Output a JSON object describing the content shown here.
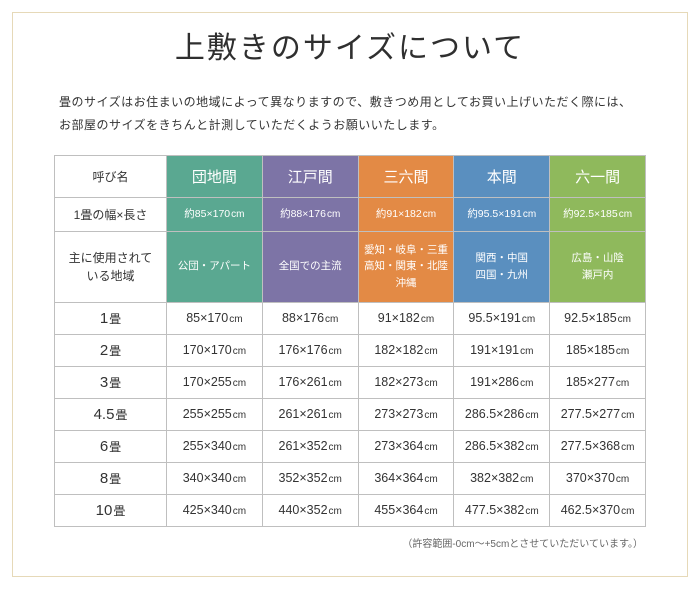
{
  "title": "上敷きのサイズについて",
  "description": "畳のサイズはお住まいの地域によって異なりますので、敷きつめ用としてお買い上げいただく際には、お部屋のサイズをきちんと計測していただくようお願いいたします。",
  "row_headers": {
    "name": "呼び名",
    "one": "1畳の幅×長さ",
    "region": "主に使用されている地域"
  },
  "columns": [
    "団地間",
    "江戸間",
    "三六間",
    "本間",
    "六一間"
  ],
  "colors": {
    "danchi": "#5aa891",
    "edo": "#7d74a6",
    "sanroku": "#e38a45",
    "honma": "#5a8fbf",
    "rokuichi": "#8fb95c"
  },
  "one_tatami": [
    "約85×170",
    "約88×176",
    "約91×182",
    "約95.5×191",
    "約92.5×185"
  ],
  "regions": [
    "公団・アパート",
    "全国での主流",
    "愛知・岐阜・三重<br>高知・関東・北陸<br>沖縄",
    "関西・中国<br>四国・九州",
    "広島・山陰<br>瀬戸内"
  ],
  "sizes": [
    {
      "label": "1",
      "vals": [
        "85×170",
        "88×176",
        "91×182",
        "95.5×191",
        "92.5×185"
      ]
    },
    {
      "label": "2",
      "vals": [
        "170×170",
        "176×176",
        "182×182",
        "191×191",
        "185×185"
      ]
    },
    {
      "label": "3",
      "vals": [
        "170×255",
        "176×261",
        "182×273",
        "191×286",
        "185×277"
      ]
    },
    {
      "label": "4.5",
      "vals": [
        "255×255",
        "261×261",
        "273×273",
        "286.5×286",
        "277.5×277"
      ]
    },
    {
      "label": "6",
      "vals": [
        "255×340",
        "261×352",
        "273×364",
        "286.5×382",
        "277.5×368"
      ]
    },
    {
      "label": "8",
      "vals": [
        "340×340",
        "352×352",
        "364×364",
        "382×382",
        "370×370"
      ]
    },
    {
      "label": "10",
      "vals": [
        "425×340",
        "440×352",
        "455×364",
        "477.5×382",
        "462.5×370"
      ]
    }
  ],
  "footnote": "（許容範囲-0cm～+5cmとさせていただいています。）"
}
